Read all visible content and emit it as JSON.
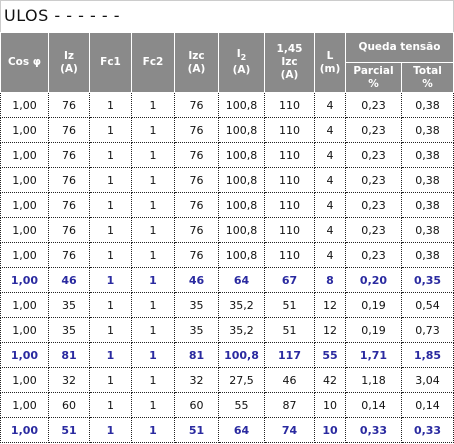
{
  "title": "ULOS - - - - - -",
  "header": {
    "cos": "Cos φ",
    "iz": [
      "Iz",
      "(A)"
    ],
    "fc1": "Fc1",
    "fc2": "Fc2",
    "izc": [
      "Izc",
      "(A)"
    ],
    "i2": {
      "main": "I",
      "sub": "2",
      "unit": "(A)"
    },
    "i145": [
      "1,45",
      "Izc",
      "(A)"
    ],
    "l": [
      "L",
      "(m)"
    ],
    "queda": "Queda tensão",
    "parcial": [
      "Parcial",
      "%"
    ],
    "total": [
      "Total",
      "%"
    ]
  },
  "table": {
    "rows": [
      {
        "cells": [
          "1,00",
          "76",
          "1",
          "1",
          "76",
          "100,8",
          "110",
          "4",
          "0,23",
          "0,38"
        ],
        "emphasis": false
      },
      {
        "cells": [
          "1,00",
          "76",
          "1",
          "1",
          "76",
          "100,8",
          "110",
          "4",
          "0,23",
          "0,38"
        ],
        "emphasis": false
      },
      {
        "cells": [
          "1,00",
          "76",
          "1",
          "1",
          "76",
          "100,8",
          "110",
          "4",
          "0,23",
          "0,38"
        ],
        "emphasis": false
      },
      {
        "cells": [
          "1,00",
          "76",
          "1",
          "1",
          "76",
          "100,8",
          "110",
          "4",
          "0,23",
          "0,38"
        ],
        "emphasis": false
      },
      {
        "cells": [
          "1,00",
          "76",
          "1",
          "1",
          "76",
          "100,8",
          "110",
          "4",
          "0,23",
          "0,38"
        ],
        "emphasis": false
      },
      {
        "cells": [
          "1,00",
          "76",
          "1",
          "1",
          "76",
          "100,8",
          "110",
          "4",
          "0,23",
          "0,38"
        ],
        "emphasis": false
      },
      {
        "cells": [
          "1,00",
          "76",
          "1",
          "1",
          "76",
          "100,8",
          "110",
          "4",
          "0,23",
          "0,38"
        ],
        "emphasis": false
      },
      {
        "cells": [
          "1,00",
          "46",
          "1",
          "1",
          "46",
          "64",
          "67",
          "8",
          "0,20",
          "0,35"
        ],
        "emphasis": true
      },
      {
        "cells": [
          "1,00",
          "35",
          "1",
          "1",
          "35",
          "35,2",
          "51",
          "12",
          "0,19",
          "0,54"
        ],
        "emphasis": false
      },
      {
        "cells": [
          "1,00",
          "35",
          "1",
          "1",
          "35",
          "35,2",
          "51",
          "12",
          "0,19",
          "0,73"
        ],
        "emphasis": false
      },
      {
        "cells": [
          "1,00",
          "81",
          "1",
          "1",
          "81",
          "100,8",
          "117",
          "55",
          "1,71",
          "1,85"
        ],
        "emphasis": true
      },
      {
        "cells": [
          "1,00",
          "32",
          "1",
          "1",
          "32",
          "27,5",
          "46",
          "42",
          "1,18",
          "3,04"
        ],
        "emphasis": false
      },
      {
        "cells": [
          "1,00",
          "60",
          "1",
          "1",
          "60",
          "55",
          "87",
          "10",
          "0,14",
          "0,14"
        ],
        "emphasis": false
      },
      {
        "cells": [
          "1,00",
          "51",
          "1",
          "1",
          "51",
          "64",
          "74",
          "10",
          "0,33",
          "0,33"
        ],
        "emphasis": true
      }
    ]
  }
}
